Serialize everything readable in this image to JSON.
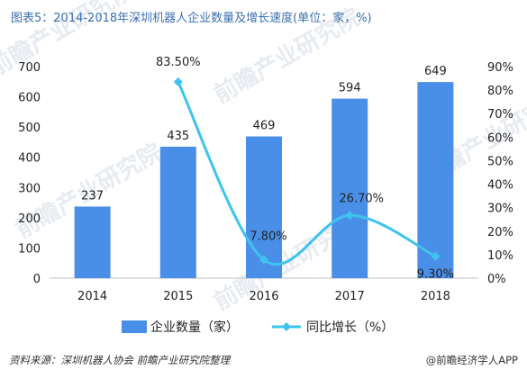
{
  "chart_data": {
    "type": "bar",
    "title": "图表5：2014-2018年深圳机器人企业数量及增长速度(单位：家，%)",
    "categories": [
      "2014",
      "2015",
      "2016",
      "2017",
      "2018"
    ],
    "series": [
      {
        "name": "企业数量（家）",
        "type": "bar",
        "axis": "left",
        "values": [
          237,
          435,
          469,
          594,
          649
        ],
        "labels": [
          "237",
          "435",
          "469",
          "594",
          "649"
        ],
        "color": "#4a8fe7"
      },
      {
        "name": "同比增长（%）",
        "type": "line",
        "smooth": true,
        "axis": "right",
        "values": [
          null,
          83.5,
          7.8,
          26.7,
          9.3
        ],
        "labels": [
          "",
          "83.50%",
          "7.80%",
          "26.70%",
          "9.30%"
        ],
        "color": "#3ec3ef"
      }
    ],
    "ylim_left": [
      0,
      700
    ],
    "yticks_left": [
      "0",
      "100",
      "200",
      "300",
      "400",
      "500",
      "600",
      "700"
    ],
    "ylim_right": [
      0,
      90
    ],
    "yticks_right": [
      "0%",
      "10%",
      "20%",
      "30%",
      "40%",
      "50%",
      "60%",
      "70%",
      "80%",
      "90%"
    ],
    "legend_position": "bottom",
    "grid": false
  },
  "footer": {
    "source": "资料来源：深圳机器人协会 前瞻产业研究院整理",
    "credit": "@前瞻经济学人APP"
  },
  "watermark": "前瞻产业研究院",
  "colors": {
    "title": "#3a6fb0",
    "bar": "#4a8fe7",
    "line": "#3ec3ef"
  }
}
